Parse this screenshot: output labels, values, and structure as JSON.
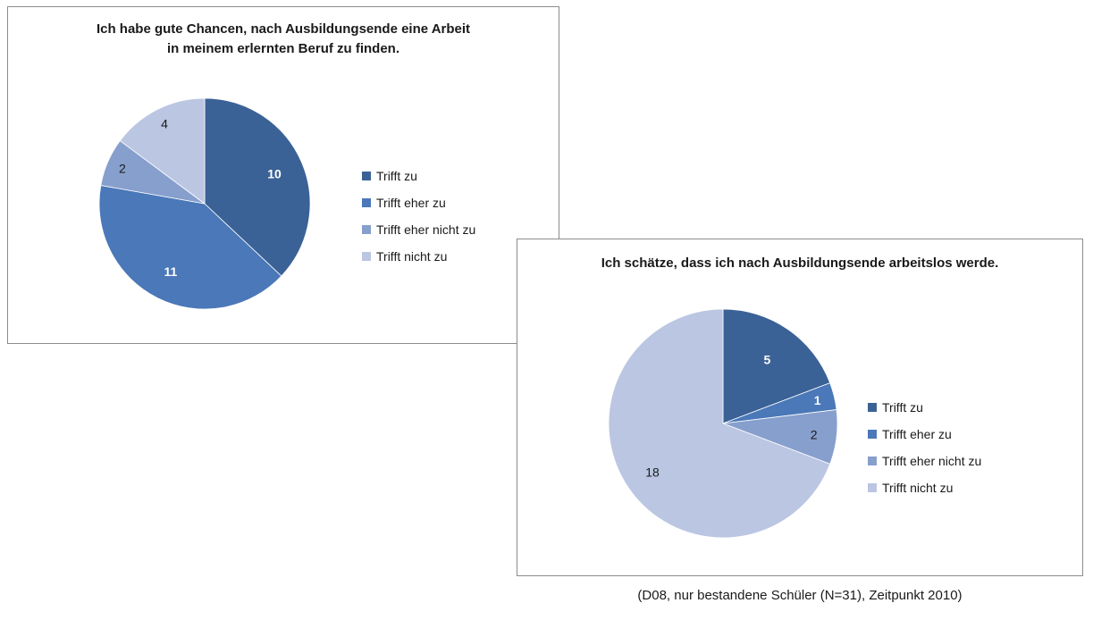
{
  "charts": [
    {
      "title": "Ich habe gute Chancen, nach Ausbildungsende eine Arbeit\nin meinem erlernten Beruf zu finden."
    },
    {
      "title": "Ich schätze, dass ich nach Ausbildungsende arbeitslos werde."
    }
  ],
  "legend_labels": [
    "Trifft zu",
    "Trifft eher zu",
    "Trifft eher nicht zu",
    "Trifft nicht zu"
  ],
  "colors": [
    "#3b6296",
    "#4a78b8",
    "#879fcd",
    "#bac6e2"
  ],
  "label_colors": [
    "#ffffff",
    "#ffffff",
    "#1a1a1a",
    "#1a1a1a"
  ],
  "chart_data": [
    {
      "type": "pie",
      "title": "Ich habe gute Chancen, nach Ausbildungsende eine Arbeit in meinem erlernten Beruf zu finden.",
      "categories": [
        "Trifft zu",
        "Trifft eher zu",
        "Trifft eher nicht zu",
        "Trifft nicht zu"
      ],
      "values": [
        10,
        11,
        2,
        4
      ],
      "legend": "right"
    },
    {
      "type": "pie",
      "title": "Ich schätze, dass ich nach Ausbildungsende arbeitslos werde.",
      "categories": [
        "Trifft zu",
        "Trifft eher zu",
        "Trifft eher nicht zu",
        "Trifft nicht zu"
      ],
      "values": [
        5,
        1,
        2,
        18
      ],
      "legend": "right"
    }
  ],
  "footnote": "(D08, nur bestandene Schüler (N=31), Zeitpunkt 2010)"
}
